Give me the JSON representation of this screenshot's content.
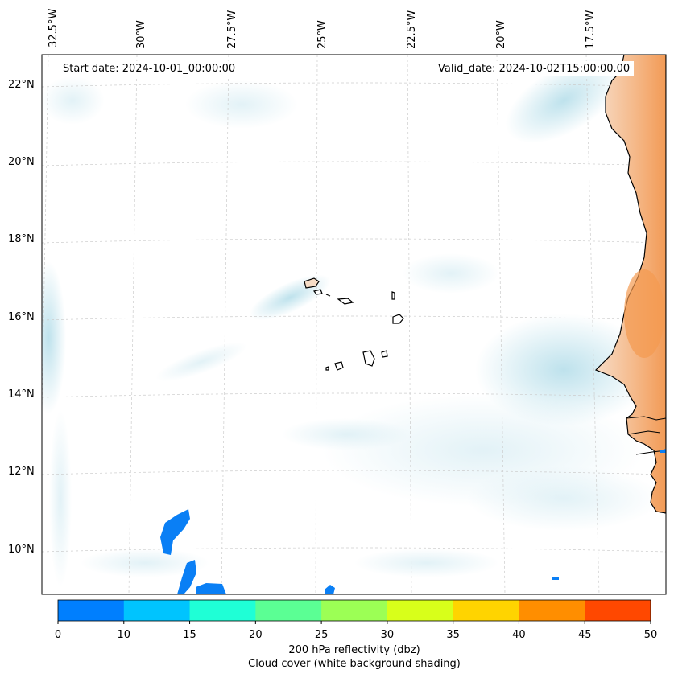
{
  "map": {
    "start_date": "Start date: 2024-10-01_00:00:00",
    "valid_date": "Valid_date: 2024-10-02T15:00:00.00",
    "lat_labels": [
      "22°N",
      "20°N",
      "18°N",
      "16°N",
      "14°N",
      "12°N",
      "10°N"
    ],
    "lon_labels": [
      "32.5°W",
      "30°W",
      "27.5°W",
      "25°W",
      "22.5°W",
      "20°W",
      "17.5°W"
    ],
    "land_color": "#f6dcc6",
    "land_warm_color": "#f4a060",
    "cloud_color": "#a8d8e6",
    "reflectivity_color": "#0a7ff5"
  },
  "colorbar": {
    "ticks": [
      "0",
      "10",
      "15",
      "20",
      "25",
      "30",
      "35",
      "40",
      "45",
      "50"
    ],
    "colors": [
      "#007ffe",
      "#00c4fe",
      "#1fffd6",
      "#5bff94",
      "#9cff55",
      "#d8ff1a",
      "#ffd400",
      "#ff8e00",
      "#ff4800"
    ],
    "label_line1": "200 hPa reflectivity (dbz)",
    "label_line2": "Cloud cover (white background shading)"
  }
}
